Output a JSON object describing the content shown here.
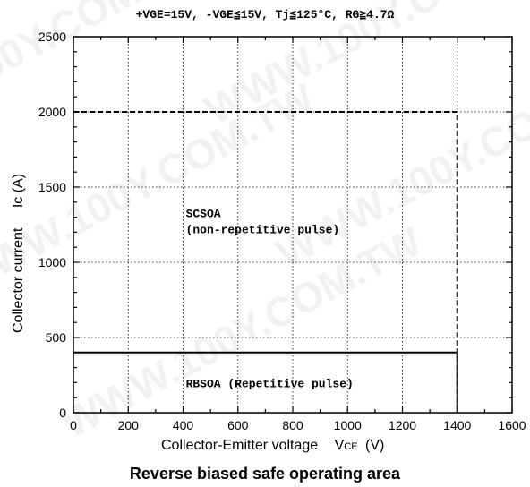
{
  "chart_data": {
    "type": "line",
    "title": "+VGE=15V, -VGE≦15V, Tj≦125°C, RG≧4.7Ω",
    "caption": "Reverse biased safe operating area",
    "xlabel_main": "Collector-Emitter voltage",
    "xlabel_sym": "Vce",
    "xlabel_unit": "(V)",
    "ylabel_main": "Collector current",
    "ylabel_sym": "Ic (A)",
    "xlim": [
      0,
      1600
    ],
    "ylim": [
      0,
      2500
    ],
    "xticks": [
      "0",
      "200",
      "400",
      "600",
      "800",
      "1000",
      "1200",
      "1400",
      "1600"
    ],
    "yticks": [
      "0",
      "500",
      "1000",
      "1500",
      "2000",
      "2500"
    ],
    "grid": true,
    "watermark": "WWW.100Y.COM.TW",
    "series": [
      {
        "name": "RBSOA (Repetitive pulse)",
        "style": "solid",
        "points": [
          [
            0,
            400
          ],
          [
            1400,
            400
          ],
          [
            1400,
            0
          ]
        ]
      },
      {
        "name": "SCSOA (non-repetitive pulse)",
        "style": "dashed",
        "points": [
          [
            0,
            2000
          ],
          [
            1400,
            2000
          ],
          [
            1400,
            0
          ]
        ]
      }
    ],
    "annotations": [
      {
        "line1": "SCSOA",
        "line2": "(non-repetitive pulse)",
        "x": 410,
        "y": 1300
      },
      {
        "line1": "RBSOA  (Repetitive pulse)",
        "x": 410,
        "y": 170
      }
    ]
  }
}
